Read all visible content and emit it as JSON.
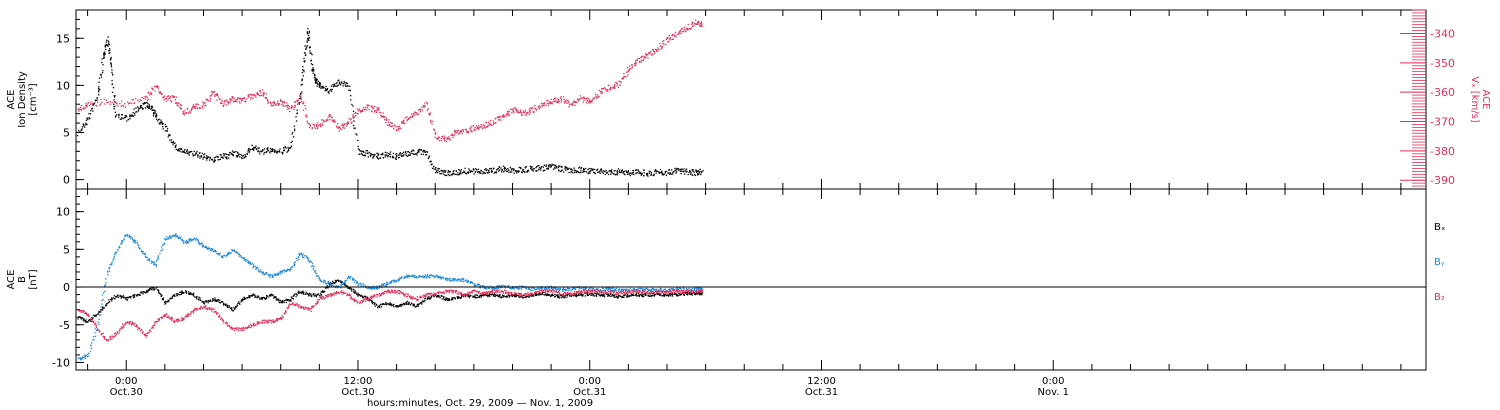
{
  "chart_data": [
    {
      "type": "scatter",
      "panel": "top",
      "ylabel_left": [
        "ACE",
        "Ion Density",
        "[cm⁻³]"
      ],
      "ylabel_right": [
        "ACE",
        "Vₓ [km/s]"
      ],
      "ylim_left": [
        -1,
        18
      ],
      "ylim_right": [
        -393,
        -332
      ],
      "yticks_left": [
        "0",
        "5",
        "10",
        "15"
      ],
      "yticks_right": [
        "-340",
        "-350",
        "-360",
        "-370",
        "-380",
        "-390"
      ],
      "yticks_left_values": [
        0,
        5,
        10,
        15
      ],
      "yticks_right_values": [
        -340,
        -350,
        -360,
        -370,
        -380,
        -390
      ],
      "series": [
        {
          "color": "#000000",
          "x": [
            -2.5,
            -2.0,
            -1.5,
            -1.2,
            -1.0,
            -0.8,
            -0.6,
            0.0,
            0.5,
            1.0,
            1.3,
            1.6,
            2.0,
            2.5,
            3.0,
            3.5,
            4.0,
            4.5,
            5.0,
            5.5,
            6.0,
            6.5,
            7.0,
            7.5,
            8.0,
            8.5,
            9.0,
            9.2,
            9.4,
            9.6,
            9.8,
            10.0,
            10.5,
            11.0,
            11.5,
            12.0,
            12.5,
            13.0,
            13.5,
            14.0,
            14.5,
            15.0,
            15.5,
            16.0,
            16.5,
            17.0,
            17.5,
            18.0,
            18.5,
            19.0,
            19.5,
            20.0,
            20.5,
            21.0,
            21.5,
            22.0,
            22.5,
            23.0,
            23.5,
            24.0,
            24.5,
            25.0,
            25.5,
            26.0,
            26.5,
            27.0,
            27.5,
            28.0,
            28.5,
            29.0,
            29.5,
            29.8
          ],
          "y": [
            5.0,
            6.5,
            9.0,
            13.0,
            15.0,
            12.0,
            7.0,
            6.5,
            7.5,
            8.0,
            7.5,
            6.5,
            5.5,
            3.5,
            3.0,
            2.8,
            2.5,
            2.2,
            2.5,
            2.8,
            2.5,
            3.5,
            3.0,
            3.2,
            3.0,
            3.5,
            9.0,
            13.0,
            16.0,
            12.0,
            10.5,
            10.0,
            9.5,
            10.5,
            10.0,
            3.0,
            2.8,
            2.5,
            2.8,
            2.5,
            2.8,
            3.0,
            3.0,
            1.0,
            0.8,
            0.8,
            1.0,
            0.9,
            1.0,
            1.0,
            1.2,
            1.0,
            1.1,
            1.2,
            1.3,
            1.4,
            1.2,
            1.0,
            1.1,
            1.0,
            0.9,
            0.8,
            0.9,
            0.8,
            0.9,
            0.7,
            0.9,
            0.8,
            1.0,
            0.9,
            0.8,
            0.9
          ]
        },
        {
          "color": "#e0305a",
          "axis": "right",
          "x": [
            -2.5,
            -2.0,
            -1.0,
            0.0,
            1.0,
            1.5,
            2.0,
            2.5,
            3.0,
            3.5,
            4.0,
            4.5,
            5.0,
            5.5,
            6.0,
            6.5,
            7.0,
            7.5,
            8.0,
            8.5,
            9.0,
            9.5,
            10.0,
            10.5,
            11.0,
            11.5,
            12.0,
            12.5,
            13.0,
            13.5,
            14.0,
            14.5,
            15.0,
            15.5,
            16.0,
            16.5,
            17.0,
            17.5,
            18.0,
            18.5,
            19.0,
            19.5,
            20.0,
            20.5,
            21.0,
            21.5,
            22.0,
            22.5,
            23.0,
            23.5,
            24.0,
            24.5,
            25.0,
            25.5,
            26.0,
            26.5,
            27.0,
            27.5,
            28.0,
            28.5,
            29.0,
            29.5,
            29.8
          ],
          "y": [
            -366,
            -364,
            -363,
            -364,
            -362,
            -358,
            -362,
            -362,
            -367,
            -365,
            -364,
            -360,
            -364,
            -362,
            -363,
            -361,
            -360,
            -364,
            -363,
            -366,
            -361,
            -372,
            -371,
            -368,
            -372,
            -370,
            -366,
            -365,
            -366,
            -370,
            -372,
            -369,
            -367,
            -364,
            -375,
            -376,
            -374,
            -373,
            -372,
            -371,
            -370,
            -368,
            -366,
            -367,
            -366,
            -364,
            -363,
            -362,
            -364,
            -362,
            -363,
            -360,
            -358,
            -357,
            -352,
            -349,
            -347,
            -345,
            -342,
            -340,
            -338,
            -336,
            -337
          ]
        }
      ]
    },
    {
      "type": "scatter",
      "panel": "bottom",
      "ylabel_left": [
        "ACE",
        "B",
        "[nT]"
      ],
      "ylim": [
        -11,
        13
      ],
      "yticks": [
        "10",
        "5",
        "0",
        "-5",
        "-10"
      ],
      "ytick_values": [
        10,
        5,
        0,
        -5,
        -10
      ],
      "legend": [
        {
          "label": "Bₓ",
          "color": "#000000"
        },
        {
          "label": "Bᵧ",
          "color": "#1e88d8"
        },
        {
          "label": "B₂",
          "color": "#e0305a"
        }
      ],
      "series": [
        {
          "color": "#000000",
          "x": [
            -2.5,
            -2.0,
            -1.5,
            -1.0,
            -0.5,
            0.0,
            0.5,
            1.0,
            1.5,
            2.0,
            2.5,
            3.0,
            3.5,
            4.0,
            4.5,
            5.0,
            5.5,
            6.0,
            6.5,
            7.0,
            7.5,
            8.0,
            8.5,
            9.0,
            9.5,
            10.0,
            10.5,
            11.0,
            11.5,
            12.0,
            12.5,
            13.0,
            13.5,
            14.0,
            14.5,
            15.0,
            15.5,
            16.0,
            16.5,
            17.0,
            17.5,
            18.0,
            18.5,
            19.0,
            19.5,
            20.0,
            20.5,
            21.0,
            21.5,
            22.0,
            22.5,
            23.0,
            23.5,
            24.0,
            24.5,
            25.0,
            25.5,
            26.0,
            26.5,
            27.0,
            27.5,
            28.0,
            28.5,
            29.0,
            29.5,
            29.8
          ],
          "y": [
            -4.0,
            -4.5,
            -3.5,
            -2.0,
            -1.0,
            -1.5,
            -1.0,
            -0.5,
            0.0,
            -2.0,
            -1.0,
            -0.5,
            -1.0,
            -2.0,
            -1.5,
            -2.0,
            -3.0,
            -1.5,
            -1.0,
            -1.5,
            -1.0,
            -2.0,
            -1.5,
            -0.5,
            -1.0,
            -1.0,
            0.5,
            1.0,
            0.0,
            -1.0,
            -1.5,
            -2.5,
            -2.0,
            -2.5,
            -2.0,
            -2.5,
            -1.5,
            -1.0,
            -1.5,
            -1.5,
            -1.0,
            -1.2,
            -1.0,
            -1.0,
            -1.2,
            -1.0,
            -1.2,
            -1.0,
            -0.8,
            -1.0,
            -1.2,
            -1.0,
            -1.0,
            -0.8,
            -1.0,
            -1.0,
            -1.2,
            -1.0,
            -1.0,
            -1.0,
            -0.9,
            -1.0,
            -0.9,
            -0.8,
            -0.8,
            -0.8
          ]
        },
        {
          "color": "#1e88d8",
          "x": [
            -2.5,
            -2.0,
            -1.5,
            -1.0,
            -0.5,
            0.0,
            0.5,
            1.0,
            1.5,
            2.0,
            2.5,
            3.0,
            3.5,
            4.0,
            4.5,
            5.0,
            5.5,
            6.0,
            6.5,
            7.0,
            7.5,
            8.0,
            8.5,
            9.0,
            9.5,
            10.0,
            10.5,
            11.0,
            11.5,
            12.0,
            12.5,
            13.0,
            13.5,
            14.0,
            14.5,
            15.0,
            15.5,
            16.0,
            16.5,
            17.0,
            17.5,
            18.0,
            18.5,
            19.0,
            19.5,
            20.0,
            20.5,
            21.0,
            21.5,
            22.0,
            22.5,
            23.0,
            23.5,
            24.0,
            24.5,
            25.0,
            25.5,
            26.0,
            26.5,
            27.0,
            27.5,
            28.0,
            28.5,
            29.0,
            29.5,
            29.8
          ],
          "y": [
            -9.5,
            -9.0,
            -5.0,
            2.0,
            5.0,
            7.0,
            6.0,
            4.0,
            3.0,
            6.5,
            7.0,
            6.0,
            6.5,
            5.5,
            5.0,
            4.0,
            5.0,
            4.0,
            3.0,
            2.0,
            1.5,
            2.0,
            2.5,
            4.5,
            3.5,
            1.0,
            0.5,
            0.0,
            1.5,
            0.5,
            0.0,
            0.0,
            0.5,
            1.0,
            1.5,
            1.5,
            1.5,
            1.5,
            1.2,
            1.0,
            1.0,
            0.5,
            0.0,
            0.0,
            0.2,
            0.0,
            0.0,
            -0.2,
            0.0,
            0.0,
            -0.3,
            -0.2,
            0.0,
            -0.2,
            -0.3,
            -0.2,
            -0.3,
            -0.3,
            -0.2,
            -0.3,
            -0.3,
            -0.3,
            -0.2,
            -0.3,
            -0.2,
            -0.2
          ]
        },
        {
          "color": "#e0305a",
          "x": [
            -2.5,
            -2.0,
            -1.5,
            -1.0,
            -0.5,
            0.0,
            0.5,
            1.0,
            1.5,
            2.0,
            2.5,
            3.0,
            3.5,
            4.0,
            4.5,
            5.0,
            5.5,
            6.0,
            6.5,
            7.0,
            7.5,
            8.0,
            8.5,
            9.0,
            9.5,
            10.0,
            10.5,
            11.0,
            11.5,
            12.0,
            12.5,
            13.0,
            13.5,
            14.0,
            14.5,
            15.0,
            15.5,
            16.0,
            16.5,
            17.0,
            17.5,
            18.0,
            18.5,
            19.0,
            19.5,
            20.0,
            20.5,
            21.0,
            21.5,
            22.0,
            22.5,
            23.0,
            23.5,
            24.0,
            24.5,
            25.0,
            25.5,
            26.0,
            26.5,
            27.0,
            27.5,
            28.0,
            28.5,
            29.0,
            29.5,
            29.8
          ],
          "y": [
            -3.0,
            -3.5,
            -5.5,
            -7.0,
            -6.0,
            -4.5,
            -5.0,
            -6.5,
            -4.5,
            -3.5,
            -4.5,
            -4.0,
            -3.0,
            -2.5,
            -3.0,
            -4.5,
            -5.5,
            -5.5,
            -5.0,
            -4.5,
            -4.5,
            -4.0,
            -2.0,
            -2.5,
            -3.0,
            -1.5,
            -1.0,
            -0.5,
            -1.0,
            -2.0,
            -1.5,
            -1.0,
            -0.5,
            -0.5,
            -1.0,
            -1.5,
            -1.0,
            -0.8,
            -0.5,
            -0.5,
            -1.0,
            -0.5,
            -0.8,
            -0.5,
            -0.5,
            -0.8,
            -1.0,
            -0.8,
            -0.5,
            -0.5,
            -0.8,
            -0.8,
            -0.6,
            -0.5,
            -0.6,
            -0.6,
            -0.7,
            -0.6,
            -0.5,
            -0.6,
            -0.6,
            -0.6,
            -0.5,
            -0.5,
            -0.5,
            -0.5
          ]
        }
      ]
    }
  ],
  "x_axis": {
    "range_hours": [
      -2.6,
      67.3
    ],
    "major_ticks": [
      {
        "hour": 0,
        "time": "0:00",
        "date": "Oct.30"
      },
      {
        "hour": 12,
        "time": "12:00",
        "date": "Oct.30"
      },
      {
        "hour": 24,
        "time": "0:00",
        "date": "Oct.31"
      },
      {
        "hour": 36,
        "time": "12:00",
        "date": "Oct.31"
      },
      {
        "hour": 48,
        "time": "0:00",
        "date": "Nov. 1"
      }
    ],
    "minor_tick_every_hours": 2,
    "xlabel": "hours:minutes, Oct. 29, 2009 — Nov.  1, 2009"
  }
}
